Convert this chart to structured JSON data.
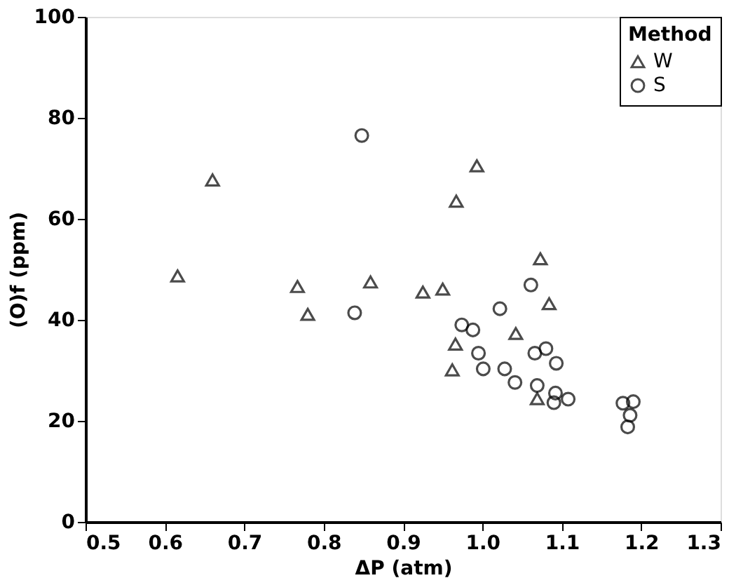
{
  "chart_data": {
    "type": "scatter",
    "xlabel": "ΔP (atm)",
    "ylabel": "(O)f (ppm)",
    "legend_title": "Method",
    "xlim": [
      0.5,
      1.3
    ],
    "ylim": [
      0,
      100
    ],
    "xticks": [
      0.5,
      0.6,
      0.7,
      0.8,
      0.9,
      {
        "value": 1.0,
        "label": "1.0"
      },
      1.1,
      1.2,
      1.3
    ],
    "yticks": [
      0,
      20,
      40,
      60,
      80,
      100
    ],
    "grid": false,
    "legend": "top right",
    "series": [
      {
        "name": "W",
        "color": "#000000",
        "marker": "triangle",
        "x": [
          0.616,
          0.66,
          0.767,
          0.78,
          0.859,
          0.925,
          0.95,
          0.967,
          0.993,
          1.073,
          1.084,
          1.042,
          0.966,
          0.962,
          1.069
        ],
        "values": [
          48.7,
          67.7,
          46.6,
          41.1,
          47.5,
          45.5,
          46.1,
          63.5,
          70.5,
          52.1,
          43.2,
          37.3,
          35.2,
          30.1,
          24.4
        ]
      },
      {
        "name": "S",
        "color": "#000000",
        "marker": "circle",
        "x": [
          0.848,
          0.839,
          0.974,
          0.988,
          0.995,
          1.001,
          1.022,
          1.028,
          1.041,
          1.061,
          1.066,
          1.08,
          1.093,
          1.069,
          1.092,
          1.09,
          1.108,
          1.177,
          1.19,
          1.186,
          1.183
        ],
        "values": [
          76.5,
          41.4,
          39.0,
          38.0,
          33.4,
          30.3,
          42.2,
          30.3,
          27.6,
          46.9,
          33.4,
          34.3,
          31.4,
          27.0,
          25.5,
          23.6,
          24.3,
          23.5,
          23.8,
          21.1,
          18.8
        ]
      }
    ]
  }
}
